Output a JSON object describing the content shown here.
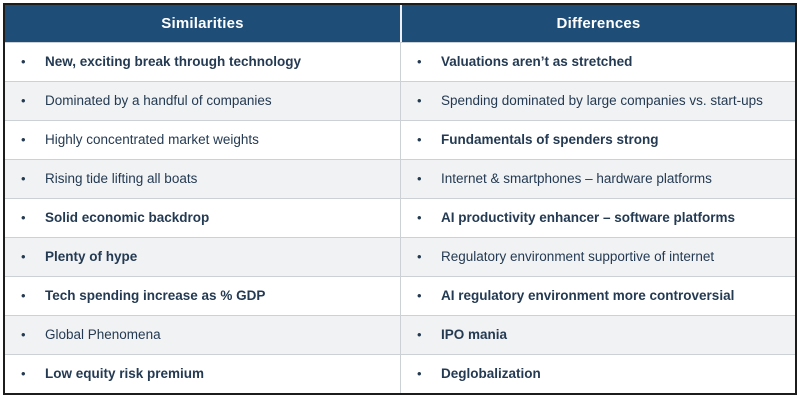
{
  "bullet_glyph": "•",
  "colors": {
    "header_bg": "#1E4E78",
    "header_text": "#FFFFFF",
    "body_text": "#243A52",
    "stripe_bg": "#F1F2F4",
    "row_border": "#CCD1D6",
    "outer_border": "#1C1C1C",
    "header_divider": "#EDEFF2"
  },
  "columns": [
    {
      "header": "Similarities",
      "items": [
        {
          "text": "New, exciting break through technology",
          "bold": true
        },
        {
          "text": "Dominated by a handful of companies",
          "bold": false
        },
        {
          "text": "Highly concentrated market weights",
          "bold": false
        },
        {
          "text": "Rising tide lifting all boats",
          "bold": false
        },
        {
          "text": "Solid economic backdrop",
          "bold": true
        },
        {
          "text": "Plenty of hype",
          "bold": true
        },
        {
          "text": "Tech spending increase as % GDP",
          "bold": true
        },
        {
          "text": "Global Phenomena",
          "bold": false
        },
        {
          "text": "Low equity risk premium",
          "bold": true
        }
      ]
    },
    {
      "header": "Differences",
      "items": [
        {
          "text": "Valuations aren’t as stretched",
          "bold": true
        },
        {
          "text": "Spending dominated by large companies vs. start-ups",
          "bold": false
        },
        {
          "text": "Fundamentals of spenders strong",
          "bold": true
        },
        {
          "text": "Internet & smartphones – hardware platforms",
          "bold": false
        },
        {
          "text": "AI productivity enhancer – software platforms",
          "bold": true
        },
        {
          "text": "Regulatory environment supportive of internet",
          "bold": false
        },
        {
          "text": "AI regulatory environment more controversial",
          "bold": true
        },
        {
          "text": "IPO mania",
          "bold": true
        },
        {
          "text": "Deglobalization",
          "bold": true
        }
      ]
    }
  ]
}
